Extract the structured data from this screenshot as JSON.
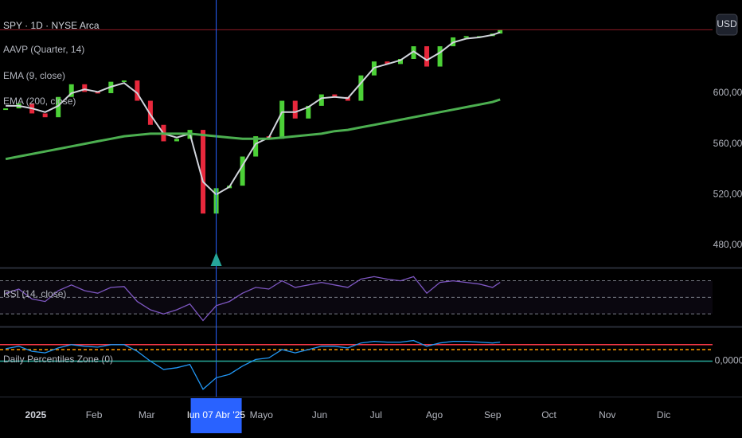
{
  "chart_data": [
    {
      "type": "candle-line",
      "title": "SPY · 1D · NYSE Arca",
      "indicators": [
        "AAVP (Quarter, 14)"
      ],
      "x": [
        "2024-12-16",
        "2024-12-23",
        "2024-12-30",
        "2025-01-06",
        "2025-01-13",
        "2025-01-20",
        "2025-01-27",
        "2025-02-03",
        "2025-02-10",
        "2025-02-17",
        "2025-02-24",
        "2025-03-03",
        "2025-03-10",
        "2025-03-17",
        "2025-03-24",
        "2025-03-31",
        "2025-04-07",
        "2025-04-14",
        "2025-04-21",
        "2025-04-28",
        "2025-05-05",
        "2025-05-12",
        "2025-05-19",
        "2025-05-26",
        "2025-06-02",
        "2025-06-09",
        "2025-06-16",
        "2025-06-23",
        "2025-06-30",
        "2025-07-07",
        "2025-07-14",
        "2025-07-21",
        "2025-07-28",
        "2025-08-04",
        "2025-08-11",
        "2025-08-18",
        "2025-08-25",
        "2025-09-01",
        "2025-09-05"
      ],
      "series": [
        {
          "name": "SPY",
          "kind": "candles",
          "up_color": "#4cd137",
          "down_color": "#e8283c",
          "values": [
            588,
            592,
            584,
            581,
            597,
            607,
            601,
            600,
            609,
            610,
            594,
            575,
            562,
            564,
            571,
            505,
            525,
            527,
            550,
            566,
            564,
            594,
            580,
            590,
            599,
            597,
            594,
            614,
            625,
            623,
            627,
            637,
            621,
            637,
            644,
            645,
            645,
            647,
            650
          ]
        },
        {
          "name": "EMA (9, close)",
          "kind": "line",
          "color": "#d1d4dc",
          "values": [
            590,
            590,
            588,
            585,
            590,
            600,
            603,
            601,
            605,
            608,
            600,
            583,
            568,
            565,
            568,
            530,
            520,
            526,
            543,
            560,
            565,
            585,
            585,
            589,
            596,
            597,
            596,
            608,
            620,
            623,
            626,
            633,
            626,
            632,
            640,
            643,
            644,
            646,
            648
          ]
        },
        {
          "name": "EMA (200, close)",
          "kind": "line",
          "color": "#4caf50",
          "values": [
            548,
            550,
            552,
            554,
            556,
            558,
            560,
            562,
            564,
            566,
            567,
            568,
            568,
            568,
            568,
            567,
            566,
            565,
            564,
            564,
            564,
            565,
            566,
            567,
            568,
            570,
            571,
            573,
            575,
            577,
            579,
            581,
            583,
            585,
            587,
            589,
            591,
            593,
            595
          ]
        }
      ],
      "ylim": [
        463,
        673.5
      ],
      "yticks": [
        {
          "value": 480,
          "label": "480,00"
        },
        {
          "value": 520,
          "label": "520,00"
        },
        {
          "value": 560,
          "label": "560,00"
        },
        {
          "value": 600,
          "label": "600,00"
        }
      ],
      "currency": "USD",
      "xlim": [
        "2024-12-13",
        "2025-12-27"
      ],
      "xticks": [
        {
          "value": "2025-01-01",
          "label": "2025"
        },
        {
          "value": "2025-02-01",
          "label": "Feb"
        },
        {
          "value": "2025-03-01",
          "label": "Mar"
        },
        {
          "value": "2025-05-01",
          "label": "Mayo"
        },
        {
          "value": "2025-06-01",
          "label": "Jun"
        },
        {
          "value": "2025-07-01",
          "label": "Jul"
        },
        {
          "value": "2025-08-01",
          "label": "Ago"
        },
        {
          "value": "2025-09-01",
          "label": "Sep"
        },
        {
          "value": "2025-10-01",
          "label": "Oct"
        },
        {
          "value": "2025-11-01",
          "label": "Nov"
        },
        {
          "value": "2025-12-01",
          "label": "Dic"
        }
      ],
      "crosshair": {
        "x": "2025-04-07",
        "label": "lun 07 Abr '25"
      }
    },
    {
      "type": "line",
      "title": "RSI (14, close)",
      "x": [
        "2024-12-16",
        "2024-12-23",
        "2024-12-30",
        "2025-01-06",
        "2025-01-13",
        "2025-01-20",
        "2025-01-27",
        "2025-02-03",
        "2025-02-10",
        "2025-02-17",
        "2025-02-24",
        "2025-03-03",
        "2025-03-10",
        "2025-03-17",
        "2025-03-24",
        "2025-03-31",
        "2025-04-07",
        "2025-04-14",
        "2025-04-21",
        "2025-04-28",
        "2025-05-05",
        "2025-05-12",
        "2025-05-19",
        "2025-05-26",
        "2025-06-02",
        "2025-06-09",
        "2025-06-16",
        "2025-06-23",
        "2025-06-30",
        "2025-07-07",
        "2025-07-14",
        "2025-07-21",
        "2025-07-28",
        "2025-08-04",
        "2025-08-11",
        "2025-08-18",
        "2025-08-25",
        "2025-09-01",
        "2025-09-05"
      ],
      "values": [
        55,
        60,
        48,
        45,
        58,
        65,
        58,
        55,
        62,
        63,
        45,
        35,
        30,
        35,
        42,
        22,
        40,
        45,
        55,
        62,
        60,
        70,
        62,
        65,
        68,
        65,
        62,
        72,
        75,
        72,
        70,
        75,
        55,
        68,
        70,
        68,
        66,
        62,
        68
      ],
      "color": "#7e57c2",
      "ylim": [
        16.7,
        84
      ],
      "levels": [
        70,
        50,
        30
      ]
    },
    {
      "type": "line",
      "title": "Daily Percentiles Zone (0)",
      "x": [
        "2024-12-16",
        "2024-12-23",
        "2024-12-30",
        "2025-01-06",
        "2025-01-13",
        "2025-01-20",
        "2025-01-27",
        "2025-02-03",
        "2025-02-10",
        "2025-02-17",
        "2025-02-24",
        "2025-03-03",
        "2025-03-10",
        "2025-03-17",
        "2025-03-24",
        "2025-03-31",
        "2025-04-07",
        "2025-04-14",
        "2025-04-21",
        "2025-04-28",
        "2025-05-05",
        "2025-05-12",
        "2025-05-19",
        "2025-05-26",
        "2025-06-02",
        "2025-06-09",
        "2025-06-16",
        "2025-06-23",
        "2025-06-30",
        "2025-07-07",
        "2025-07-14",
        "2025-07-21",
        "2025-07-28",
        "2025-08-04",
        "2025-08-11",
        "2025-08-18",
        "2025-08-25",
        "2025-09-01",
        "2025-09-05"
      ],
      "values": [
        0.015,
        0.018,
        0.012,
        0.01,
        0.016,
        0.02,
        0.018,
        0.017,
        0.02,
        0.02,
        0.012,
        0.0,
        -0.01,
        -0.008,
        -0.004,
        -0.034,
        -0.02,
        -0.016,
        -0.006,
        0.002,
        0.004,
        0.014,
        0.01,
        0.014,
        0.018,
        0.018,
        0.016,
        0.022,
        0.024,
        0.023,
        0.023,
        0.025,
        0.018,
        0.022,
        0.024,
        0.024,
        0.023,
        0.022,
        0.023
      ],
      "color": "#2196f3",
      "ylim": [
        -0.04,
        0.04
      ],
      "yticks": [
        {
          "value": 0,
          "label": "0,0000"
        }
      ],
      "levels": [
        {
          "value": 0.02,
          "color": "#f23645",
          "dash": false
        },
        {
          "value": 0.014,
          "color": "#ff9800",
          "dash": true
        }
      ]
    }
  ]
}
